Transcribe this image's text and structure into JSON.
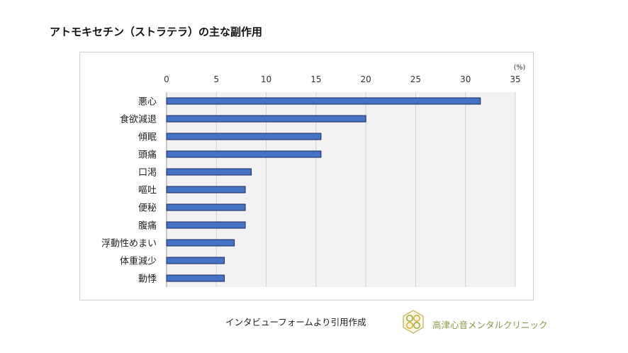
{
  "title": "アトモキセチン（ストラテラ）の主な副作用",
  "footer": {
    "source": "インタビューフォームより引用作成",
    "brand": "高津心音メンタルクリニック"
  },
  "colors": {
    "bar": "#4472C4",
    "bar_border": "#1F2A5C",
    "plot_bg": "#F2F2F2",
    "grid": "#D0D0D0",
    "brand": "#8A9A4A"
  },
  "chart_data": {
    "type": "bar",
    "orientation": "horizontal",
    "title": "アトモキセチン（ストラテラ）の主な副作用",
    "unit_label": "(%)",
    "xlim": [
      0,
      35
    ],
    "xticks": [
      0,
      5,
      10,
      15,
      20,
      25,
      30,
      35
    ],
    "xtick_labels": [
      "0",
      "5",
      "10",
      "15",
      "20",
      "25",
      "30",
      "35"
    ],
    "axis_position": "top",
    "grid": true,
    "categories": [
      "悪心",
      "食欲減退",
      "傾眠",
      "頭痛",
      "口渇",
      "嘔吐",
      "便秘",
      "腹痛",
      "浮動性めまい",
      "体重減少",
      "動悸"
    ],
    "values": [
      31.5,
      20.0,
      15.5,
      15.5,
      8.5,
      7.9,
      7.9,
      7.9,
      6.8,
      5.8,
      5.8
    ]
  }
}
